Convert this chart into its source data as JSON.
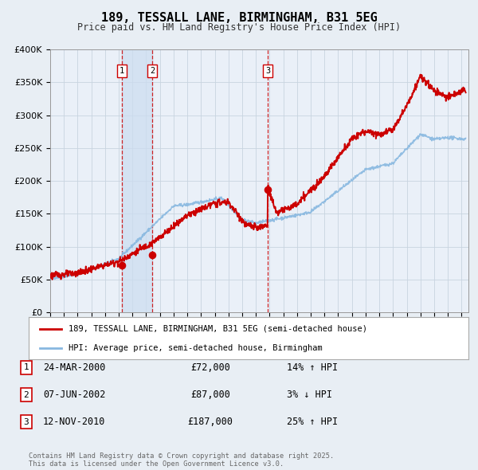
{
  "title": "189, TESSALL LANE, BIRMINGHAM, B31 5EG",
  "subtitle": "Price paid vs. HM Land Registry's House Price Index (HPI)",
  "bg_color": "#e8eef4",
  "plot_bg_color": "#eaf0f8",
  "grid_color": "#c8d4e0",
  "red_color": "#cc0000",
  "blue_color": "#88b8e0",
  "ylim": [
    0,
    400000
  ],
  "xlim_start": 1995.0,
  "xlim_end": 2025.5,
  "ytick_values": [
    0,
    50000,
    100000,
    150000,
    200000,
    250000,
    300000,
    350000,
    400000
  ],
  "legend_entry1": "189, TESSALL LANE, BIRMINGHAM, B31 5EG (semi-detached house)",
  "legend_entry2": "HPI: Average price, semi-detached house, Birmingham",
  "transactions": [
    {
      "num": 1,
      "date": "24-MAR-2000",
      "price": "£72,000",
      "pct": "14%",
      "dir": "↑",
      "year": 2000.23,
      "value": 72000
    },
    {
      "num": 2,
      "date": "07-JUN-2002",
      "price": "£87,000",
      "pct": "3%",
      "dir": "↓",
      "value": 87000,
      "year": 2002.44
    },
    {
      "num": 3,
      "date": "12-NOV-2010",
      "price": "£187,000",
      "pct": "25%",
      "dir": "↑",
      "value": 187000,
      "year": 2010.87
    }
  ],
  "footnote": "Contains HM Land Registry data © Crown copyright and database right 2025.\nThis data is licensed under the Open Government Licence v3.0.",
  "shade_color": "#ccddf0"
}
